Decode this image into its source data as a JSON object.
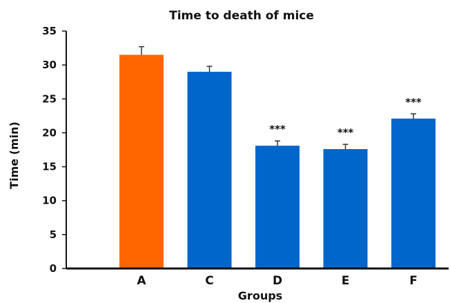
{
  "chart_data": {
    "type": "bar",
    "title": "Time to death of mice",
    "xlabel": "Groups",
    "ylabel": "Time (min)",
    "ylim": [
      0,
      35
    ],
    "yticks": [
      0,
      5,
      10,
      15,
      20,
      25,
      30,
      35
    ],
    "categories": [
      "A",
      "C",
      "D",
      "E",
      "F"
    ],
    "values": [
      31.5,
      29.0,
      18.1,
      17.6,
      22.1
    ],
    "errors": [
      1.2,
      0.8,
      0.7,
      0.7,
      0.7
    ],
    "significance": [
      "",
      "",
      "***",
      "***",
      "***"
    ],
    "colors": [
      "#FF6600",
      "#0066CC",
      "#0066CC",
      "#0066CC",
      "#0066CC"
    ],
    "grid": false,
    "legend": "none"
  }
}
